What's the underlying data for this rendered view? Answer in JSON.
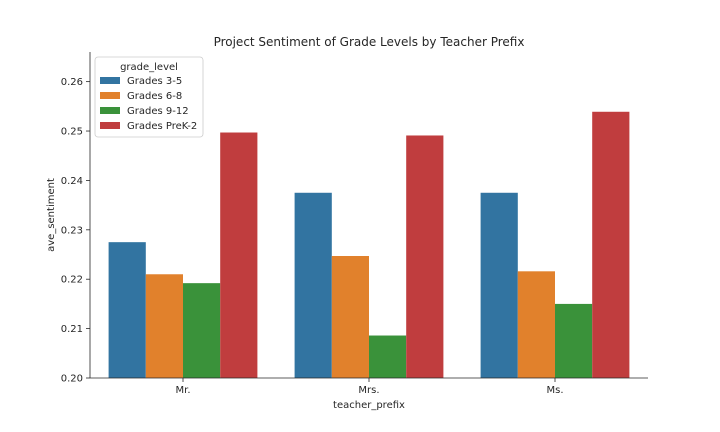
{
  "chart_data": {
    "type": "bar",
    "title": "Project Sentiment of Grade Levels by Teacher Prefix",
    "xlabel": "teacher_prefix",
    "ylabel": "ave_sentiment",
    "categories": [
      "Mr.",
      "Mrs.",
      "Ms."
    ],
    "ylim": [
      0.2,
      0.266
    ],
    "yticks": [
      "0.20",
      "0.21",
      "0.22",
      "0.23",
      "0.24",
      "0.25",
      "0.26"
    ],
    "legend_title": "grade_level",
    "legend_position": "top-left",
    "grid": false,
    "series": [
      {
        "name": "Grades 3-5",
        "color": "#3274a1",
        "values": [
          0.2275,
          0.2375,
          0.2375
        ]
      },
      {
        "name": "Grades 6-8",
        "color": "#e1812c",
        "values": [
          0.221,
          0.2247,
          0.2216
        ]
      },
      {
        "name": "Grades 9-12",
        "color": "#3a923a",
        "values": [
          0.2192,
          0.2086,
          0.215
        ]
      },
      {
        "name": "Grades PreK-2",
        "color": "#c03d3e",
        "values": [
          0.2497,
          0.2491,
          0.2539
        ]
      }
    ]
  }
}
